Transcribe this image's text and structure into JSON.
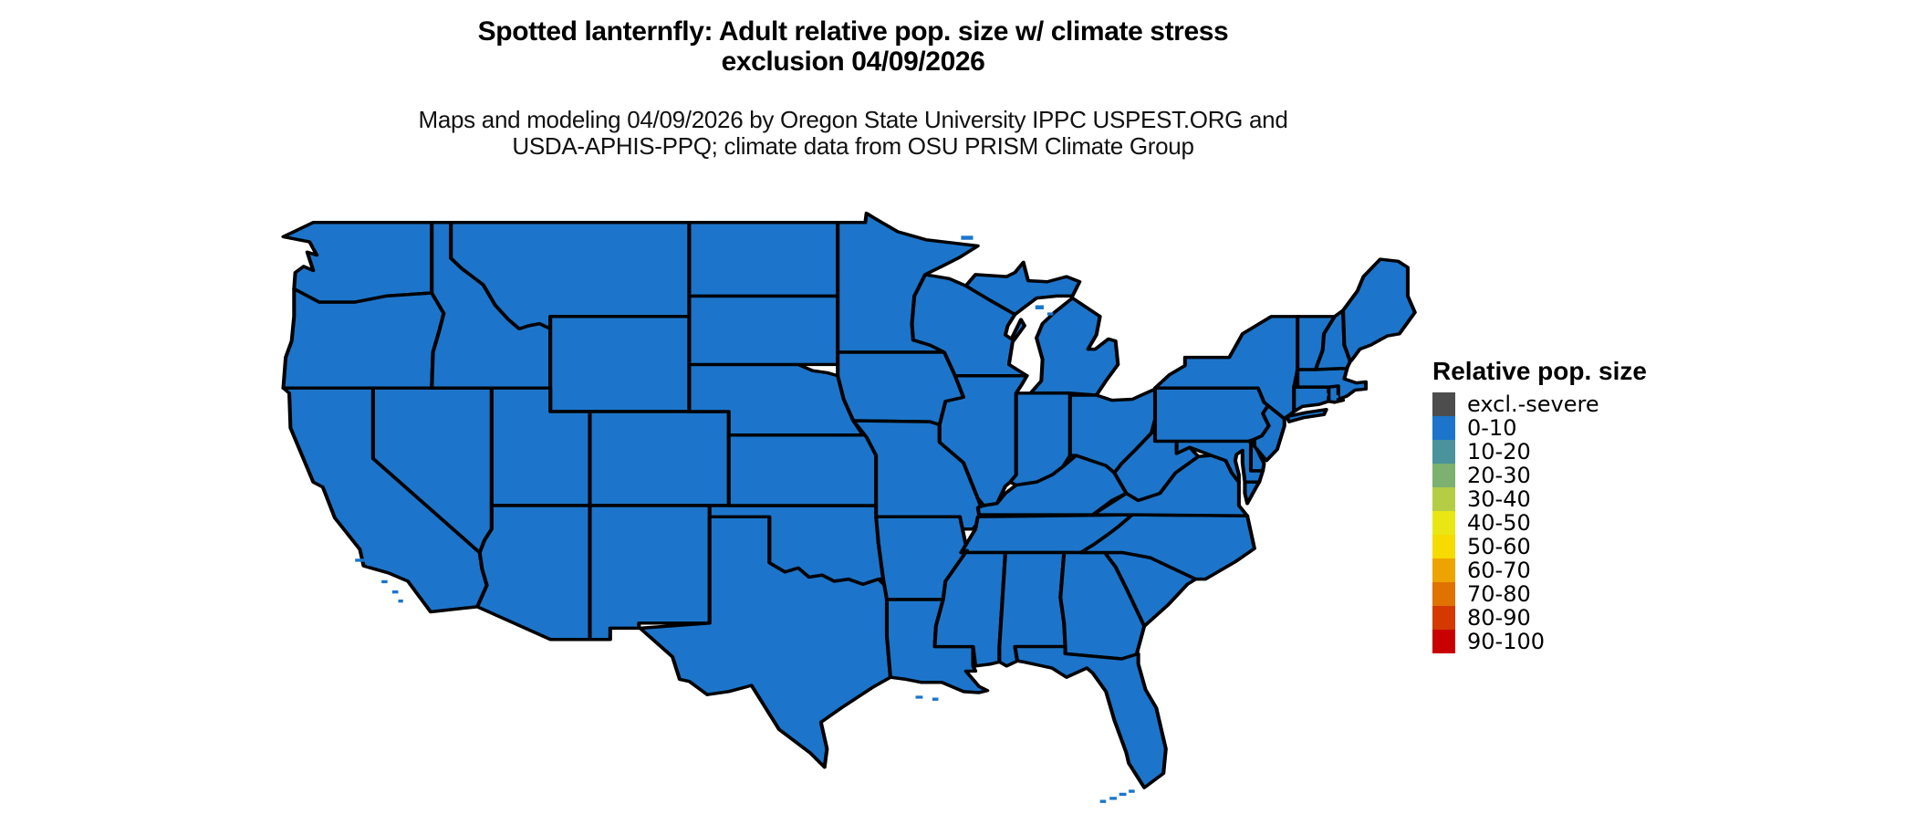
{
  "header": {
    "title_line1": "Spotted lanternfly: Adult relative pop. size w/ climate stress",
    "title_line2": "exclusion 04/09/2026",
    "subtitle_line1": "Maps and modeling 04/09/2026 by Oregon State University IPPC USPEST.ORG and",
    "subtitle_line2": "USDA-APHIS-PPQ; climate data from OSU PRISM Climate Group"
  },
  "map": {
    "region": "Contiguous United States",
    "state_fill_class": "0-10",
    "state_fill_color": "#1C75CA",
    "border_color": "#000000",
    "water_background_color": "#FFFFFF"
  },
  "legend": {
    "title": "Relative pop. size",
    "items": [
      {
        "label": "excl.-severe",
        "color": "#4D4D4D"
      },
      {
        "label": "0-10",
        "color": "#1C75CA"
      },
      {
        "label": "10-20",
        "color": "#4A939C"
      },
      {
        "label": "20-30",
        "color": "#7CB16F"
      },
      {
        "label": "30-40",
        "color": "#B4CD44"
      },
      {
        "label": "40-50",
        "color": "#E8E714"
      },
      {
        "label": "50-60",
        "color": "#F6DB00"
      },
      {
        "label": "60-70",
        "color": "#EDA400"
      },
      {
        "label": "70-80",
        "color": "#E07200"
      },
      {
        "label": "80-90",
        "color": "#D43A00"
      },
      {
        "label": "90-100",
        "color": "#C90000"
      }
    ]
  },
  "chart_data": {
    "type": "heatmap",
    "subtype": "choropleth-map",
    "region": "Contiguous United States (48 states)",
    "legend_title": "Relative pop. size",
    "classes": [
      "excl.-severe",
      "0-10",
      "10-20",
      "20-30",
      "30-40",
      "40-50",
      "50-60",
      "60-70",
      "70-80",
      "80-90",
      "90-100"
    ],
    "class_colors": [
      "#4D4D4D",
      "#1C75CA",
      "#4A939C",
      "#7CB16F",
      "#B4CD44",
      "#E8E714",
      "#F6DB00",
      "#EDA400",
      "#E07200",
      "#D43A00",
      "#C90000"
    ],
    "observation": "All mapped states are shown in the 0-10 class (uniform blue)",
    "date_shown": "04/09/2026",
    "legend_position": "right"
  }
}
